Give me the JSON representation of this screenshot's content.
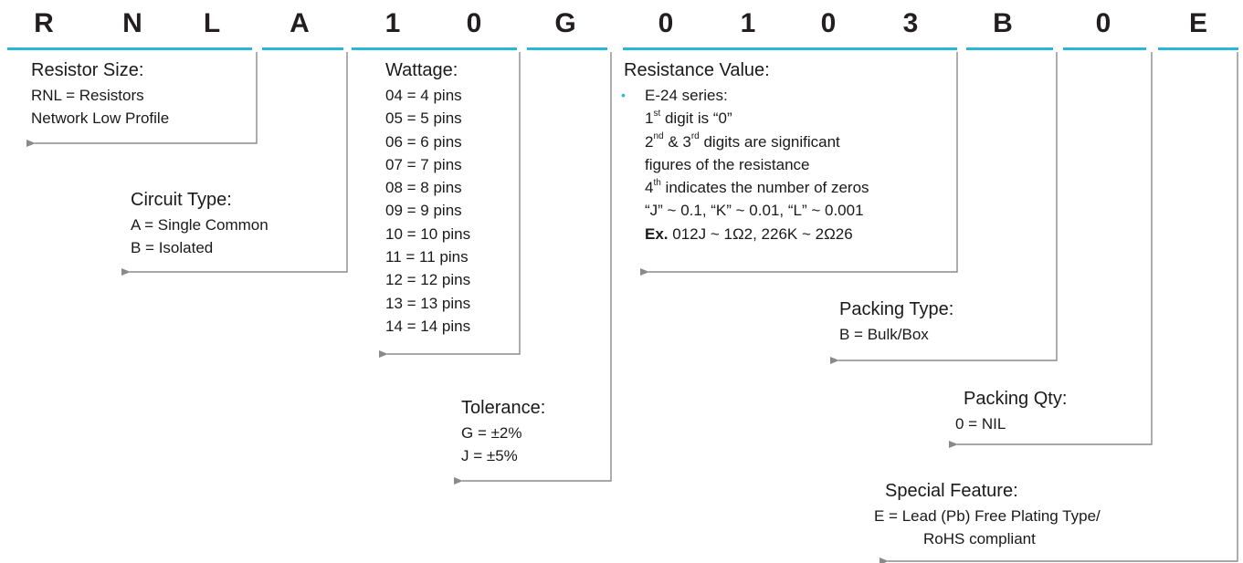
{
  "code": {
    "chars": [
      "R",
      "N",
      "L",
      "A",
      "1",
      "0",
      "G",
      "0",
      "1",
      "0",
      "3",
      "B",
      "0",
      "E"
    ]
  },
  "resistor_size": {
    "title": "Resistor Size:",
    "lines": [
      "RNL = Resistors",
      "Network Low Profile"
    ]
  },
  "circuit_type": {
    "title": "Circuit Type:",
    "lines": [
      "A = Single Common",
      "B = Isolated"
    ]
  },
  "wattage": {
    "title": "Wattage:",
    "lines": [
      "04 = 4 pins",
      "05 = 5 pins",
      "06 = 6 pins",
      "07 = 7 pins",
      "08 = 8 pins",
      "09 = 9 pins",
      "10 = 10 pins",
      "11 = 11 pins",
      "12 = 12 pins",
      "13 = 13 pins",
      "14 = 14 pins"
    ]
  },
  "tolerance": {
    "title": "Tolerance:",
    "lines": [
      "G = ±2%",
      "J  = ±5%"
    ]
  },
  "resistance_value": {
    "title": "Resistance Value:",
    "bullet": "•",
    "series": "E-24 series:",
    "digit1": {
      "num": "1",
      "sup": "st",
      "text": " digit is “0”"
    },
    "digit23": {
      "num1": "2",
      "sup1": "nd",
      "mid": " & 3",
      "sup2": "rd",
      "text": " digits are significant"
    },
    "figures": "figures of the resistance",
    "digit4": {
      "num": "4",
      "sup": "th",
      "text": " indicates the number of zeros"
    },
    "letters": "“J” ~ 0.1, “K” ~ 0.01, “L” ~ 0.001",
    "example_label": "Ex.",
    "example": " 012J ~ 1Ω2, 226K ~ 2Ω26"
  },
  "packing_type": {
    "title": "Packing Type:",
    "lines": [
      "B = Bulk/Box"
    ]
  },
  "packing_qty": {
    "title": "Packing Qty:",
    "lines": [
      "0 = NIL"
    ]
  },
  "special_feature": {
    "title": "Special Feature:",
    "lines": [
      "E = Lead (Pb) Free Plating Type/",
      "RoHS compliant"
    ]
  },
  "colors": {
    "accent": "#29b6d8",
    "arrow": "#8a8a8a",
    "text": "#1a1a1a"
  }
}
